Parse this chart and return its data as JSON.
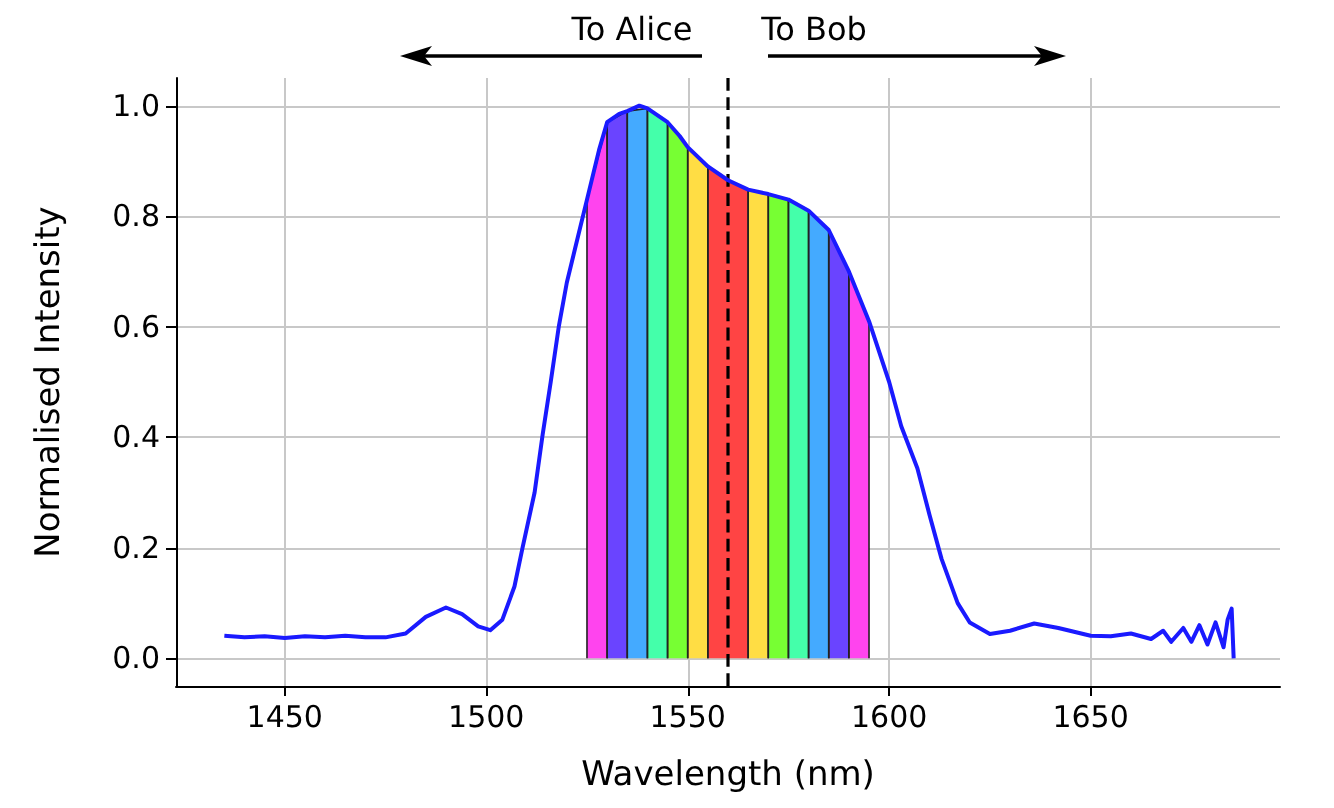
{
  "chart_data": {
    "type": "line",
    "xlabel": "Wavelength (nm)",
    "ylabel": "Normalised Intensity",
    "annotations": [
      "To Alice",
      "To Bob"
    ],
    "xlim": [
      1423,
      1697
    ],
    "ylim": [
      -0.05,
      1.05
    ],
    "xticks": [
      1450,
      1500,
      1550,
      1600,
      1650
    ],
    "yticks": [
      {
        "value": 0,
        "label": "0.0"
      },
      {
        "value": 0.2,
        "label": "0.2"
      },
      {
        "value": 0.4,
        "label": "0.4"
      },
      {
        "value": 0.6,
        "label": "0.6"
      },
      {
        "value": 0.8,
        "label": "0.8"
      },
      {
        "value": 1,
        "label": "1.0"
      }
    ],
    "grid": true,
    "marker": "none",
    "ref_lines": [
      {
        "axis": "x",
        "value": 1560,
        "label": null,
        "color": "#000000",
        "line_style": "dashed"
      }
    ],
    "series": [
      {
        "type": "area",
        "color": "#ff44ee",
        "x": [
          1525,
          1525,
          1530,
          1530
        ],
        "values": [
          0,
          0.83,
          0.97,
          0
        ]
      },
      {
        "type": "area",
        "color": "#6a44ff",
        "x": [
          1530,
          1530,
          1535,
          1535
        ],
        "values": [
          0,
          0.97,
          0.99,
          0
        ]
      },
      {
        "type": "area",
        "color": "#44aaff",
        "x": [
          1535,
          1535,
          1540,
          1540
        ],
        "values": [
          0,
          0.99,
          0.995,
          0
        ]
      },
      {
        "type": "area",
        "color": "#44ffaa",
        "x": [
          1540,
          1540,
          1545,
          1545
        ],
        "values": [
          0,
          0.995,
          0.97,
          0
        ]
      },
      {
        "type": "area",
        "color": "#77ff33",
        "x": [
          1545,
          1545,
          1550,
          1550
        ],
        "values": [
          0,
          0.97,
          0.925,
          0
        ]
      },
      {
        "type": "area",
        "color": "#ffdd44",
        "x": [
          1550,
          1550,
          1555,
          1555
        ],
        "values": [
          0,
          0.925,
          0.89,
          0
        ]
      },
      {
        "type": "area",
        "color": "#ff4444",
        "x": [
          1555,
          1555,
          1560,
          1565,
          1565
        ],
        "values": [
          0,
          0.89,
          0.865,
          0.848,
          0
        ]
      },
      {
        "type": "area",
        "color": "#ffdd44",
        "x": [
          1565,
          1565,
          1570,
          1570
        ],
        "values": [
          0,
          0.848,
          0.84,
          0
        ]
      },
      {
        "type": "area",
        "color": "#77ff33",
        "x": [
          1570,
          1570,
          1575,
          1575
        ],
        "values": [
          0,
          0.84,
          0.83,
          0
        ]
      },
      {
        "type": "area",
        "color": "#44ffaa",
        "x": [
          1575,
          1575,
          1580,
          1580
        ],
        "values": [
          0,
          0.83,
          0.81,
          0
        ]
      },
      {
        "type": "area",
        "color": "#44aaff",
        "x": [
          1580,
          1580,
          1585,
          1585
        ],
        "values": [
          0,
          0.81,
          0.775,
          0
        ]
      },
      {
        "type": "area",
        "color": "#6a44ff",
        "x": [
          1585,
          1585,
          1590,
          1590
        ],
        "values": [
          0,
          0.775,
          0.7,
          0
        ]
      },
      {
        "type": "area",
        "color": "#ff44ee",
        "x": [
          1590,
          1590,
          1595,
          1595
        ],
        "values": [
          0,
          0.7,
          0.61,
          0
        ]
      },
      {
        "color": "#1a1aff",
        "x": [
          1435,
          1440,
          1445,
          1450,
          1455,
          1460,
          1465,
          1470,
          1475,
          1480,
          1485,
          1490,
          1494,
          1498,
          1501,
          1504,
          1507,
          1509,
          1512,
          1514,
          1516,
          1518,
          1520,
          1522,
          1525,
          1528,
          1530,
          1533,
          1535,
          1538,
          1540,
          1543,
          1545,
          1548,
          1550,
          1555,
          1560,
          1565,
          1570,
          1575,
          1580,
          1585,
          1590,
          1595,
          1600,
          1603,
          1607,
          1610,
          1613,
          1617,
          1620,
          1625,
          1630,
          1636,
          1642,
          1650,
          1655,
          1660,
          1665,
          1668,
          1670,
          1673,
          1675,
          1677,
          1679,
          1681,
          1683,
          1684,
          1685,
          1685.5
        ],
        "values": [
          0.041,
          0.038,
          0.04,
          0.037,
          0.04,
          0.038,
          0.041,
          0.038,
          0.038,
          0.045,
          0.075,
          0.092,
          0.08,
          0.058,
          0.051,
          0.07,
          0.13,
          0.2,
          0.3,
          0.405,
          0.5,
          0.6,
          0.68,
          0.74,
          0.83,
          0.92,
          0.97,
          0.985,
          0.99,
          1.0,
          0.995,
          0.98,
          0.97,
          0.945,
          0.925,
          0.89,
          0.865,
          0.848,
          0.84,
          0.83,
          0.81,
          0.775,
          0.7,
          0.61,
          0.5,
          0.42,
          0.344,
          0.26,
          0.18,
          0.1,
          0.065,
          0.044,
          0.05,
          0.063,
          0.055,
          0.041,
          0.04,
          0.045,
          0.035,
          0.05,
          0.03,
          0.055,
          0.03,
          0.06,
          0.025,
          0.065,
          0.02,
          0.07,
          0.09,
          0.0
        ]
      }
    ]
  }
}
